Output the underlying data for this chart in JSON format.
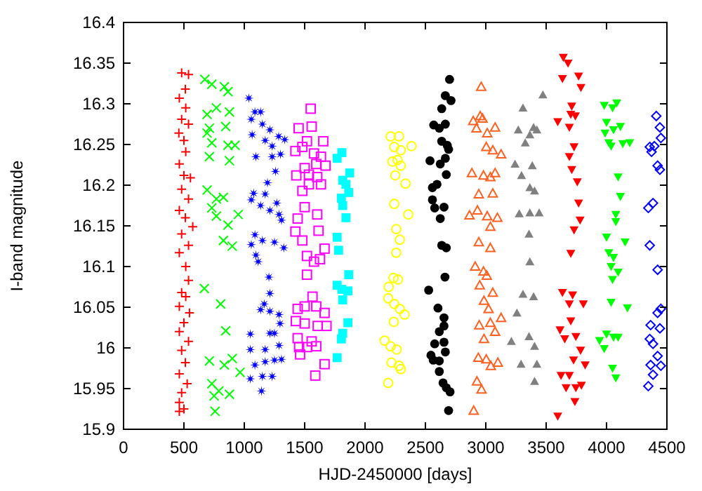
{
  "chart_data": {
    "type": "scatter",
    "xlabel": "HJD-2450000 [days]",
    "ylabel": "I-band magnitude",
    "xlim": [
      0,
      4500
    ],
    "ylim": [
      15.9,
      16.4
    ],
    "xticks": [
      0,
      500,
      1000,
      1500,
      2000,
      2500,
      3000,
      3500,
      4000,
      4500
    ],
    "yticks": [
      15.9,
      15.95,
      16,
      16.05,
      16.1,
      16.15,
      16.2,
      16.25,
      16.3,
      16.35,
      16.4
    ],
    "series": [
      {
        "color": "#ff0000",
        "marker": "plus",
        "x": [
          481,
          538,
          512,
          462,
          515,
          481,
          538,
          458,
          500,
          515,
          462,
          554,
          500,
          481,
          538,
          462,
          512,
          573,
          481,
          538,
          462,
          515,
          538,
          481,
          515,
          462,
          546,
          500,
          462,
          538,
          481,
          512,
          462,
          527,
          481,
          462,
          500,
          462
        ],
        "values": [
          16.338,
          16.336,
          16.318,
          16.307,
          16.295,
          16.281,
          16.275,
          16.264,
          16.255,
          16.241,
          16.226,
          16.209,
          16.212,
          16.195,
          16.183,
          16.169,
          16.16,
          16.149,
          16.14,
          16.126,
          16.117,
          16.1,
          16.083,
          16.068,
          16.063,
          16.051,
          16.043,
          16.031,
          16.02,
          16.008,
          15.997,
          15.982,
          15.968,
          15.956,
          15.945,
          15.933,
          15.925,
          15.922
        ]
      },
      {
        "color": "#00ff00",
        "marker": "cross",
        "x": [
          673,
          731,
          835,
          865,
          692,
          769,
          877,
          711,
          846,
          692,
          731,
          865,
          923,
          711,
          877,
          692,
          769,
          827,
          731,
          769,
          865,
          950,
          827,
          900,
          669,
          804,
          846,
          711,
          835,
          900,
          965,
          731,
          789,
          750,
          877,
          758
        ],
        "values": [
          16.33,
          16.324,
          16.321,
          16.315,
          16.287,
          16.295,
          16.29,
          16.27,
          16.272,
          16.264,
          16.252,
          16.249,
          16.249,
          16.235,
          16.23,
          16.194,
          16.183,
          16.185,
          16.172,
          16.162,
          16.151,
          16.164,
          16.132,
          16.125,
          16.073,
          16.054,
          16.021,
          15.984,
          15.979,
          15.987,
          15.97,
          15.956,
          15.947,
          15.941,
          15.943,
          15.922
        ]
      },
      {
        "color": "#0000ff",
        "marker": "star",
        "x": [
          1038,
          1088,
          1135,
          1058,
          1150,
          1212,
          1065,
          1285,
          1173,
          1335,
          1231,
          1096,
          1231,
          1300,
          1258,
          1192,
          1077,
          1173,
          1058,
          1135,
          1212,
          1269,
          1288,
          1308,
          1088,
          1150,
          1058,
          1250,
          1327,
          1096,
          1115,
          1204,
          1212,
          1165,
          1135,
          1212,
          1288,
          1296,
          1050,
          1212,
          1250,
          1050,
          1173,
          1288,
          1308,
          1088,
          1173,
          1250,
          1050,
          1150,
          1231,
          1142
        ],
        "values": [
          16.307,
          16.29,
          16.29,
          16.281,
          16.275,
          16.268,
          16.262,
          16.26,
          16.255,
          16.256,
          16.248,
          16.235,
          16.235,
          16.238,
          16.217,
          16.203,
          16.19,
          16.189,
          16.182,
          16.175,
          16.169,
          16.178,
          16.164,
          16.157,
          16.139,
          16.132,
          16.127,
          16.13,
          16.123,
          16.114,
          16.106,
          16.087,
          16.067,
          16.054,
          16.047,
          16.045,
          16.041,
          16.03,
          16.017,
          16.018,
          16.018,
          15.998,
          15.998,
          16.003,
          15.986,
          15.979,
          15.983,
          15.985,
          15.962,
          15.965,
          15.965,
          15.947
        ]
      },
      {
        "color": "#ff00ff",
        "marker": "square-open",
        "x": [
          1550,
          1450,
          1558,
          1423,
          1481,
          1519,
          1654,
          1577,
          1635,
          1673,
          1500,
          1596,
          1431,
          1535,
          1604,
          1481,
          1535,
          1635,
          1500,
          1442,
          1604,
          1423,
          1615,
          1481,
          1665,
          1519,
          1577,
          1627,
          1519,
          1442,
          1500,
          1565,
          1596,
          1665,
          1427,
          1500,
          1608,
          1681,
          1442,
          1558,
          1454,
          1519,
          1596,
          1462,
          1665,
          1588
        ],
        "values": [
          16.294,
          16.27,
          16.272,
          16.242,
          16.247,
          16.254,
          16.254,
          16.239,
          16.235,
          16.224,
          16.221,
          16.226,
          16.212,
          16.213,
          16.21,
          16.193,
          16.201,
          16.201,
          16.173,
          16.159,
          16.164,
          16.143,
          16.144,
          16.132,
          16.122,
          16.113,
          16.106,
          16.109,
          16.09,
          16.048,
          16.051,
          16.063,
          16.051,
          16.043,
          16.033,
          16.03,
          16.027,
          16.027,
          16.012,
          16.008,
          16.001,
          16.001,
          16.002,
          15.992,
          15.98,
          15.966
        ]
      },
      {
        "color": "#00ffff",
        "marker": "square",
        "x": [
          1769,
          1808,
          1873,
          1815,
          1842,
          1804,
          1865,
          1815,
          1842,
          1769,
          1781,
          1865,
          1769,
          1808,
          1858,
          1815,
          1858,
          1815,
          1804,
          1769
        ],
        "values": [
          16.233,
          16.24,
          16.215,
          16.206,
          16.201,
          16.184,
          16.191,
          16.175,
          16.16,
          16.136,
          16.12,
          16.09,
          16.077,
          16.072,
          16.07,
          16.059,
          16.031,
          16.018,
          16.011,
          15.988
        ]
      },
      {
        "color": "#ffff00",
        "marker": "circle-open",
        "x": [
          2212,
          2281,
          2242,
          2296,
          2227,
          2269,
          2296,
          2250,
          2335,
          2242,
          2358,
          2258,
          2288,
          2258,
          2235,
          2273,
          2196,
          2192,
          2242,
          2288,
          2327,
          2238,
          2162,
          2212,
          2262,
          2219,
          2281,
          2296,
          2192,
          2385
        ],
        "values": [
          16.26,
          16.26,
          16.247,
          16.243,
          16.229,
          16.231,
          16.224,
          16.212,
          16.202,
          16.177,
          16.164,
          16.146,
          16.133,
          16.117,
          16.086,
          16.084,
          16.075,
          16.061,
          16.054,
          16.048,
          16.041,
          16.032,
          16.009,
          16.002,
          15.998,
          15.982,
          15.978,
          15.974,
          15.957,
          16.248
        ]
      },
      {
        "color": "#000000",
        "marker": "circle",
        "x": [
          2700,
          2665,
          2712,
          2635,
          2569,
          2665,
          2615,
          2635,
          2681,
          2692,
          2538,
          2665,
          2623,
          2673,
          2558,
          2596,
          2558,
          2577,
          2654,
          2623,
          2635,
          2673,
          2662,
          2527,
          2604,
          2654,
          2654,
          2615,
          2577,
          2654,
          2546,
          2565,
          2615,
          2665,
          2615,
          2646,
          2704,
          2673,
          2692
        ],
        "values": [
          16.33,
          16.31,
          16.304,
          16.294,
          16.274,
          16.275,
          16.27,
          16.254,
          16.249,
          16.244,
          16.23,
          16.233,
          16.226,
          16.213,
          16.197,
          16.201,
          16.182,
          16.172,
          16.173,
          16.159,
          16.126,
          16.123,
          16.087,
          16.071,
          16.049,
          16.037,
          16.027,
          16.02,
          16.005,
          16.007,
          15.991,
          15.985,
          15.984,
          15.995,
          15.971,
          15.957,
          15.946,
          15.951,
          15.923
        ]
      },
      {
        "color": "#ff6020",
        "marker": "triangle-open",
        "x": [
          2962,
          2954,
          2896,
          2973,
          2923,
          3012,
          3077,
          3004,
          3058,
          3127,
          2885,
          2981,
          3038,
          3077,
          2942,
          3058,
          2865,
          2931,
          3012,
          3096,
          3038,
          2942,
          3038,
          2912,
          2981,
          3008,
          2950,
          3058,
          2985,
          3023,
          3127,
          2946,
          3038,
          3077,
          2985,
          2938,
          3004,
          3042,
          3100,
          2927,
          2965,
          2900
        ],
        "values": [
          16.321,
          16.285,
          16.279,
          16.282,
          16.27,
          16.264,
          16.271,
          16.247,
          16.243,
          16.238,
          16.215,
          16.212,
          16.21,
          16.215,
          16.189,
          16.19,
          16.163,
          16.169,
          16.162,
          16.16,
          16.149,
          16.13,
          16.123,
          16.1,
          16.094,
          16.089,
          16.077,
          16.068,
          16.058,
          16.048,
          16.037,
          16.028,
          16.031,
          16.02,
          16.011,
          15.988,
          15.986,
          15.978,
          15.982,
          15.959,
          15.949,
          15.923
        ]
      },
      {
        "color": "#808080",
        "marker": "triangle",
        "x": [
          3473,
          3308,
          3269,
          3396,
          3365,
          3327,
          3423,
          3242,
          3385,
          3296,
          3365,
          3404,
          3277,
          3365,
          3442,
          3358,
          3365,
          3308,
          3396,
          3258,
          3212,
          3358,
          3404,
          3292,
          3423,
          3404
        ],
        "values": [
          16.311,
          16.295,
          16.268,
          16.271,
          16.262,
          16.252,
          16.268,
          16.226,
          16.224,
          16.212,
          16.197,
          16.193,
          16.165,
          16.166,
          16.166,
          16.14,
          16.106,
          16.066,
          16.063,
          16.043,
          16.008,
          16.014,
          16.002,
          15.98,
          15.98,
          15.959
        ]
      },
      {
        "color": "#ff0000",
        "marker": "triangle-down",
        "x": [
          3642,
          3681,
          3635,
          3769,
          3788,
          3712,
          3596,
          3704,
          3742,
          3692,
          3731,
          3692,
          3712,
          3758,
          3769,
          3781,
          3731,
          3704,
          3635,
          3719,
          3692,
          3808,
          3704,
          3615,
          3746,
          3654,
          3785,
          3727,
          3823,
          3623,
          3692,
          3665,
          3746,
          3792,
          3738,
          3596
        ],
        "values": [
          16.357,
          16.35,
          16.331,
          16.334,
          16.32,
          16.297,
          16.278,
          16.287,
          16.285,
          16.271,
          16.247,
          16.235,
          16.219,
          16.204,
          16.178,
          16.157,
          16.145,
          16.116,
          16.068,
          16.065,
          16.054,
          16.054,
          16.033,
          16.022,
          16.014,
          16.011,
          15.997,
          15.985,
          15.979,
          15.966,
          15.966,
          15.951,
          15.951,
          15.954,
          15.934,
          15.916
        ]
      },
      {
        "color": "#00ff00",
        "marker": "triangle-down",
        "x": [
          3981,
          4050,
          4085,
          4000,
          4115,
          3988,
          4058,
          4192,
          4019,
          4038,
          4135,
          4096,
          4115,
          4077,
          4077,
          4000,
          4154,
          4019,
          4058,
          4038,
          4096,
          4050,
          4038,
          4173,
          4000,
          4096,
          3942,
          4058,
          3981,
          4050,
          4077
        ],
        "values": [
          16.298,
          16.295,
          16.301,
          16.277,
          16.272,
          16.264,
          16.268,
          16.252,
          16.252,
          16.248,
          16.251,
          16.21,
          16.186,
          16.164,
          16.155,
          16.136,
          16.13,
          16.117,
          16.111,
          16.1,
          16.093,
          16.084,
          16.056,
          16.049,
          16.017,
          16.013,
          16.009,
          16.013,
          15.999,
          15.975,
          15.963
        ]
      },
      {
        "color": "#0000ff",
        "marker": "diamond-open",
        "x": [
          4412,
          4442,
          4450,
          4396,
          4358,
          4373,
          4423,
          4442,
          4385,
          4346,
          4358,
          4423,
          4450,
          4423,
          4365,
          4442,
          4358,
          4385,
          4423,
          4365,
          4450,
          4385,
          4346
        ],
        "values": [
          16.285,
          16.271,
          16.258,
          16.248,
          16.247,
          16.241,
          16.224,
          16.219,
          16.178,
          16.172,
          16.126,
          16.096,
          16.048,
          16.043,
          16.028,
          16.024,
          16.011,
          16.005,
          15.99,
          15.979,
          15.978,
          15.967,
          15.953
        ]
      }
    ]
  }
}
